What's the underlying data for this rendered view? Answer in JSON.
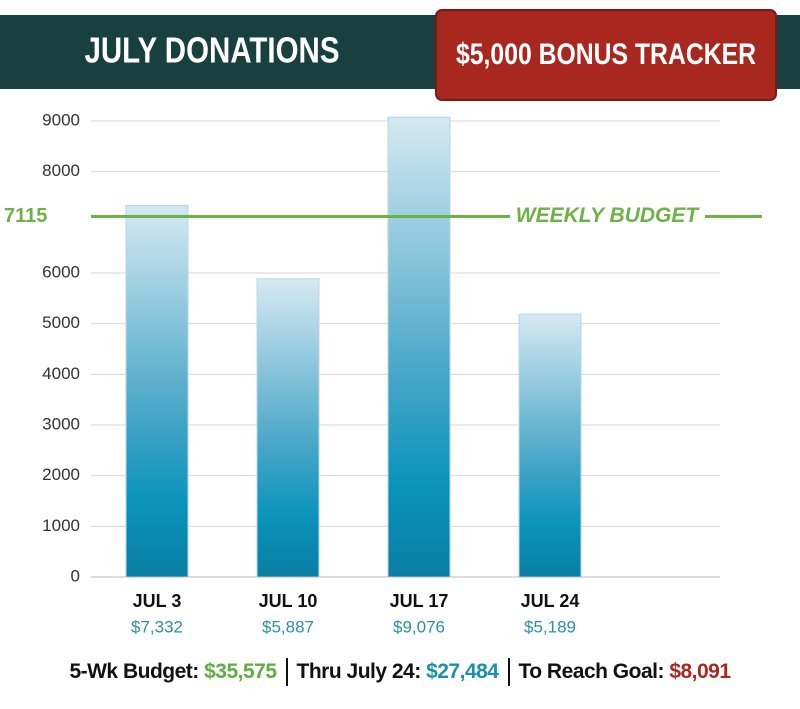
{
  "chart_data": {
    "type": "bar",
    "title": "JULY DONATIONS",
    "badge": "$5,000 BONUS TRACKER",
    "categories": [
      "JUL 3",
      "JUL 10",
      "JUL 17",
      "JUL 24"
    ],
    "values": [
      7332,
      5887,
      9076,
      5189
    ],
    "value_labels": [
      "$7,332",
      "$5,887",
      "$9,076",
      "$5,189"
    ],
    "ylim": [
      0,
      9000
    ],
    "yticks": [
      0,
      1000,
      2000,
      3000,
      4000,
      5000,
      6000,
      8000,
      9000
    ],
    "grid": true,
    "reference_line": {
      "value": 7115,
      "label": "WEEKLY BUDGET",
      "color": "#6cb245"
    },
    "summary": [
      {
        "label": "5-Wk Budget:",
        "value": "$35,575",
        "color": "#5fae3f"
      },
      {
        "label": "Thru July 24:",
        "value": "$27,484",
        "color": "#1a8fb0"
      },
      {
        "label": "To Reach Goal:",
        "value": "$8,091",
        "color": "#a8281f"
      }
    ]
  }
}
